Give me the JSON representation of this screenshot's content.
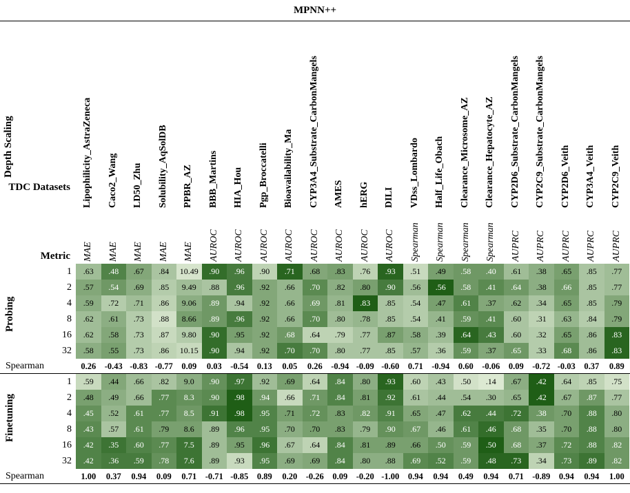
{
  "chart_data": {
    "type": "heatmap",
    "title": "MPNN++",
    "y_axis_title": "Depth Scaling",
    "x_axis_title": "TDC Datasets",
    "metric_row_label": "Metric",
    "spearman_label": "Spearman",
    "columns": [
      "Lipophilicity_AstraZeneca",
      "Caco2_Wang",
      "LD50_Zhu",
      "Solubility_AqSolDB",
      "PPBR_AZ",
      "BBB_Martins",
      "HIA_Hou",
      "Pgp_Broccatelli",
      "Bioavailability_Ma",
      "CYP3A4_Substrate_CarbonMangels",
      "AMES",
      "hERG",
      "DILI",
      "VDss_Lombardo",
      "Half_Life_Obach",
      "Clearance_Microsome_AZ",
      "Clearance_Hepatocyte_AZ",
      "CYP2D6_Substrate_CarbonMangels",
      "CYP2C9_Substrate_CarbonMangels",
      "CYP2D6_Veith",
      "CYP3A4_Veith",
      "CYP2C9_Veith"
    ],
    "metrics": [
      "MAE",
      "MAE",
      "MAE",
      "MAE",
      "MAE",
      "AUROC",
      "AUROC",
      "AUROC",
      "AUROC",
      "AUROC",
      "AUROC",
      "AUROC",
      "AUROC",
      "Spearman",
      "Spearman",
      "Spearman",
      "Spearman",
      "AUPRC",
      "AUPRC",
      "AUPRC",
      "AUPRC",
      "AUPRC"
    ],
    "sections": [
      {
        "name": "Probing",
        "depths": [
          "1",
          "2",
          "4",
          "8",
          "16",
          "32"
        ],
        "values": [
          [
            ".63",
            ".48",
            ".67",
            ".84",
            "10.49",
            ".90",
            ".96",
            ".90",
            ".71",
            ".68",
            ".83",
            ".76",
            ".93",
            ".51",
            ".49",
            ".58",
            ".40",
            ".61",
            ".38",
            ".65",
            ".85",
            ".77"
          ],
          [
            ".57",
            ".54",
            ".69",
            ".85",
            "9.49",
            ".88",
            ".96",
            ".92",
            ".66",
            ".70",
            ".82",
            ".80",
            ".90",
            ".56",
            ".56",
            ".58",
            ".41",
            ".64",
            ".38",
            ".66",
            ".85",
            ".77"
          ],
          [
            ".59",
            ".72",
            ".71",
            ".86",
            "9.06",
            ".89",
            ".94",
            ".92",
            ".66",
            ".69",
            ".81",
            ".83",
            ".85",
            ".54",
            ".47",
            ".61",
            ".37",
            ".62",
            ".34",
            ".65",
            ".85",
            ".79"
          ],
          [
            ".62",
            ".61",
            ".73",
            ".88",
            "8.66",
            ".89",
            ".96",
            ".92",
            ".66",
            ".70",
            ".80",
            ".78",
            ".85",
            ".54",
            ".41",
            ".59",
            ".41",
            ".60",
            ".31",
            ".63",
            ".84",
            ".79"
          ],
          [
            ".62",
            ".58",
            ".73",
            ".87",
            "9.80",
            ".90",
            ".95",
            ".92",
            ".68",
            ".64",
            ".79",
            ".77",
            ".87",
            ".58",
            ".39",
            ".64",
            ".43",
            ".60",
            ".32",
            ".65",
            ".86",
            ".83"
          ],
          [
            ".58",
            ".55",
            ".73",
            ".86",
            "10.15",
            ".90",
            ".94",
            ".92",
            ".70",
            ".70",
            ".80",
            ".77",
            ".85",
            ".57",
            ".36",
            ".59",
            ".37",
            ".65",
            ".33",
            ".68",
            ".86",
            ".83"
          ]
        ],
        "shades": [
          [
            0.35,
            0.75,
            0.5,
            0.3,
            0.08,
            0.9,
            0.8,
            0.2,
            0.95,
            0.5,
            0.55,
            0.2,
            0.95,
            0.15,
            0.55,
            0.6,
            0.6,
            0.35,
            0.45,
            0.55,
            0.3,
            0.35
          ],
          [
            0.5,
            0.6,
            0.45,
            0.25,
            0.35,
            0.3,
            0.8,
            0.5,
            0.4,
            0.7,
            0.45,
            0.55,
            0.8,
            0.35,
            1.0,
            0.6,
            0.7,
            0.6,
            0.45,
            0.6,
            0.3,
            0.35
          ],
          [
            0.45,
            0.25,
            0.35,
            0.2,
            0.45,
            0.6,
            0.3,
            0.5,
            0.4,
            0.6,
            0.4,
            1.0,
            0.3,
            0.25,
            0.55,
            0.75,
            0.5,
            0.45,
            0.3,
            0.55,
            0.3,
            0.5
          ],
          [
            0.35,
            0.45,
            0.25,
            0.1,
            0.55,
            0.6,
            0.8,
            0.5,
            0.4,
            0.7,
            0.35,
            0.4,
            0.3,
            0.25,
            0.4,
            0.65,
            0.7,
            0.3,
            0.2,
            0.4,
            0.25,
            0.5
          ],
          [
            0.35,
            0.5,
            0.25,
            0.15,
            0.25,
            0.9,
            0.55,
            0.5,
            0.6,
            0.2,
            0.2,
            0.3,
            0.55,
            0.45,
            0.35,
            0.95,
            0.8,
            0.3,
            0.25,
            0.55,
            0.35,
            0.95
          ],
          [
            0.45,
            0.55,
            0.25,
            0.2,
            0.15,
            0.9,
            0.3,
            0.5,
            0.8,
            0.7,
            0.3,
            0.3,
            0.3,
            0.4,
            0.25,
            0.65,
            0.5,
            0.6,
            0.25,
            0.7,
            0.35,
            0.95
          ]
        ],
        "spearman": [
          "0.26",
          "-0.43",
          "-0.83",
          "-0.77",
          "0.09",
          "0.03",
          "-0.54",
          "0.13",
          "0.05",
          "0.26",
          "-0.94",
          "-0.09",
          "-0.60",
          "0.71",
          "-0.94",
          "0.60",
          "-0.06",
          "0.09",
          "-0.72",
          "-0.03",
          "0.37",
          "0.89"
        ]
      },
      {
        "name": "Finetuning",
        "depths": [
          "1",
          "2",
          "4",
          "8",
          "16",
          "32"
        ],
        "values": [
          [
            ".59",
            ".44",
            ".66",
            ".82",
            "9.0",
            ".90",
            ".97",
            ".92",
            ".69",
            ".64",
            ".84",
            ".80",
            ".93",
            ".60",
            ".43",
            ".50",
            ".14",
            ".67",
            ".42",
            ".64",
            ".85",
            ".75"
          ],
          [
            ".48",
            ".49",
            ".66",
            ".77",
            "8.3",
            ".90",
            ".98",
            ".94",
            ".66",
            ".71",
            ".84",
            ".81",
            ".92",
            ".61",
            ".44",
            ".54",
            ".30",
            ".65",
            ".42",
            ".67",
            ".87",
            ".77"
          ],
          [
            ".45",
            ".52",
            ".61",
            ".77",
            "8.5",
            ".91",
            ".98",
            ".95",
            ".71",
            ".72",
            ".83",
            ".82",
            ".91",
            ".65",
            ".47",
            ".62",
            ".44",
            ".72",
            ".38",
            ".70",
            ".88",
            ".80"
          ],
          [
            ".43",
            ".57",
            ".61",
            ".79",
            "8.6",
            ".89",
            ".96",
            ".95",
            ".70",
            ".70",
            ".83",
            ".79",
            ".90",
            ".67",
            ".46",
            ".61",
            ".46",
            ".68",
            ".35",
            ".70",
            ".88",
            ".80"
          ],
          [
            ".42",
            ".35",
            ".60",
            ".77",
            "7.5",
            ".89",
            ".95",
            ".96",
            ".67",
            ".64",
            ".84",
            ".81",
            ".89",
            ".66",
            ".50",
            ".59",
            ".50",
            ".68",
            ".37",
            ".72",
            ".88",
            ".82"
          ],
          [
            ".42",
            ".36",
            ".59",
            ".78",
            "7.6",
            ".89",
            ".93",
            ".95",
            ".69",
            ".69",
            ".84",
            ".80",
            ".88",
            ".69",
            ".52",
            ".59",
            ".48",
            ".73",
            ".34",
            ".73",
            ".89",
            ".82"
          ]
        ],
        "shades": [
          [
            0.15,
            0.5,
            0.35,
            0.3,
            0.45,
            0.65,
            0.85,
            0.35,
            0.55,
            0.2,
            0.75,
            0.45,
            0.95,
            0.2,
            0.3,
            0.1,
            0.05,
            0.45,
            1.0,
            0.25,
            0.2,
            0.1
          ],
          [
            0.55,
            0.45,
            0.35,
            0.7,
            0.65,
            0.7,
            1.0,
            0.6,
            0.15,
            0.6,
            0.75,
            0.55,
            0.85,
            0.3,
            0.35,
            0.35,
            0.35,
            0.4,
            1.0,
            0.4,
            0.6,
            0.3
          ],
          [
            0.65,
            0.4,
            0.7,
            0.7,
            0.6,
            0.85,
            1.0,
            0.75,
            0.55,
            0.65,
            0.55,
            0.6,
            0.75,
            0.5,
            0.45,
            0.8,
            0.8,
            0.85,
            0.6,
            0.55,
            0.75,
            0.45
          ],
          [
            0.7,
            0.3,
            0.7,
            0.55,
            0.55,
            0.35,
            0.75,
            0.75,
            0.45,
            0.55,
            0.55,
            0.4,
            0.65,
            0.6,
            0.4,
            0.75,
            0.9,
            0.6,
            0.35,
            0.55,
            0.75,
            0.45
          ],
          [
            0.75,
            0.85,
            0.75,
            0.7,
            0.85,
            0.35,
            0.55,
            0.85,
            0.3,
            0.2,
            0.75,
            0.55,
            0.55,
            0.55,
            0.65,
            0.6,
            1.0,
            0.6,
            0.5,
            0.7,
            0.75,
            0.6
          ],
          [
            0.75,
            0.8,
            0.8,
            0.65,
            0.85,
            0.35,
            0.15,
            0.75,
            0.45,
            0.5,
            0.75,
            0.45,
            0.45,
            0.7,
            0.75,
            0.6,
            0.95,
            0.95,
            0.2,
            0.75,
            0.85,
            0.6
          ]
        ],
        "spearman": [
          "1.00",
          "0.37",
          "0.94",
          "0.09",
          "0.71",
          "-0.71",
          "-0.85",
          "0.89",
          "0.20",
          "-0.26",
          "0.09",
          "-0.20",
          "-1.00",
          "0.94",
          "0.94",
          "0.49",
          "0.94",
          "0.71",
          "-0.89",
          "0.94",
          "0.94",
          "1.00"
        ]
      }
    ],
    "colors": {
      "light": "#e6f0dc",
      "dark": "#1f5e16",
      "text_dark": "#000000",
      "text_light": "#ffffff"
    }
  }
}
